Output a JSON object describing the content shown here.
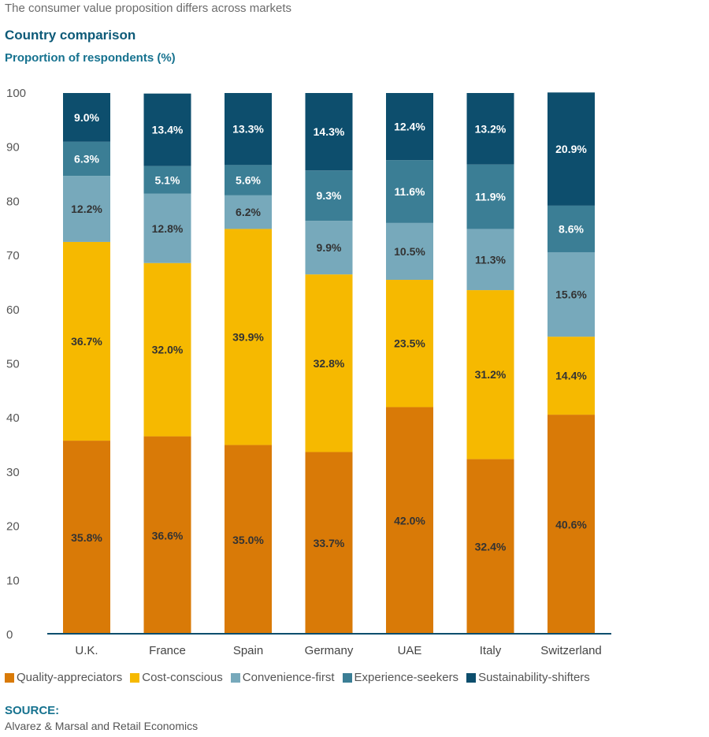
{
  "header": {
    "kicker": "The consumer value proposition differs across markets",
    "title": "Country comparison",
    "subtitle": "Proportion of respondents (%)"
  },
  "chart_data": {
    "type": "bar",
    "stacked": true,
    "title": "Country comparison",
    "ylabel": "Proportion of respondents (%)",
    "xlabel": "",
    "ylim": [
      0,
      100
    ],
    "yticks": [
      0,
      10,
      20,
      30,
      40,
      50,
      60,
      70,
      80,
      90,
      100
    ],
    "grid": false,
    "legend_position": "bottom",
    "categories": [
      "U.K.",
      "France",
      "Spain",
      "Germany",
      "UAE",
      "Italy",
      "Switzerland"
    ],
    "series": [
      {
        "name": "Quality-appreciators",
        "color": "#d97a07",
        "label_color": "#333333",
        "values": [
          35.8,
          36.6,
          35.0,
          33.7,
          42.0,
          32.4,
          40.6
        ]
      },
      {
        "name": "Cost-conscious",
        "color": "#f6b900",
        "label_color": "#333333",
        "values": [
          36.7,
          32.0,
          39.9,
          32.8,
          23.5,
          31.2,
          14.4
        ]
      },
      {
        "name": "Convenience-first",
        "color": "#77a9bb",
        "label_color": "#333333",
        "values": [
          12.2,
          12.8,
          6.2,
          9.9,
          10.5,
          11.3,
          15.6
        ]
      },
      {
        "name": "Experience-seekers",
        "color": "#3b7e95",
        "label_color": "#ffffff",
        "values": [
          6.3,
          5.1,
          5.6,
          9.3,
          11.6,
          11.9,
          8.6
        ]
      },
      {
        "name": "Sustainability-shifters",
        "color": "#0d4e6d",
        "label_color": "#ffffff",
        "values": [
          9.0,
          13.4,
          13.3,
          14.3,
          12.4,
          13.2,
          20.9
        ]
      }
    ]
  },
  "source": {
    "label": "SOURCE:",
    "text": "Alvarez & Marsal and Retail Economics"
  }
}
